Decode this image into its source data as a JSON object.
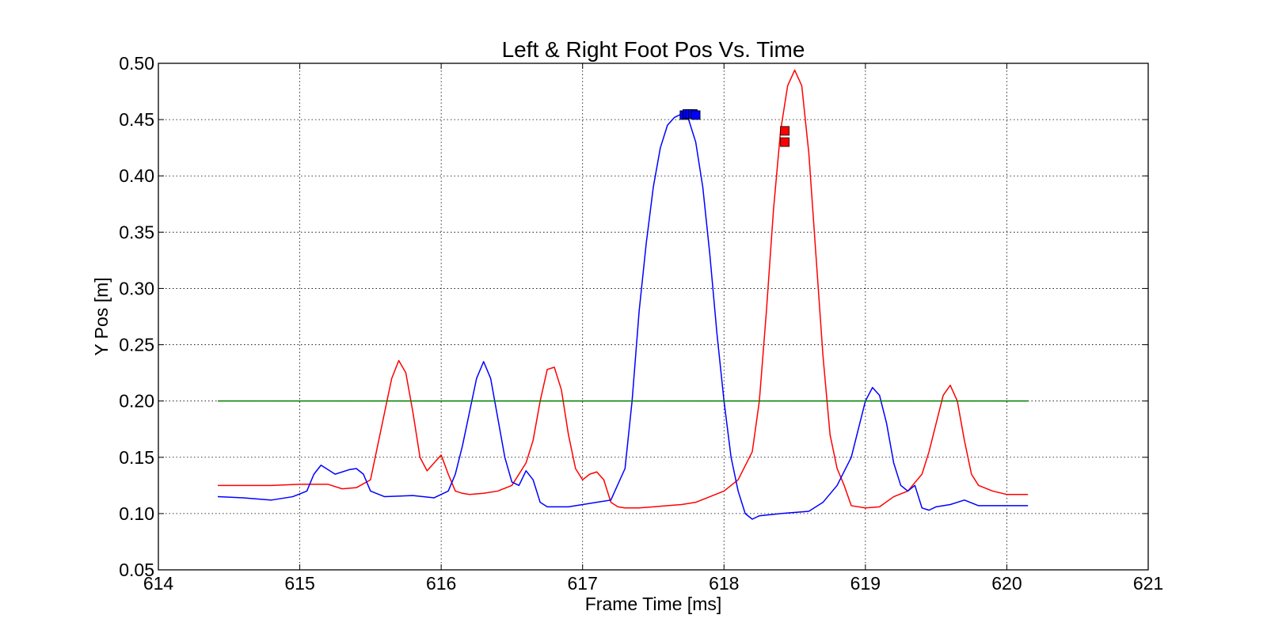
{
  "chart_data": {
    "type": "line",
    "title": "Left & Right Foot Pos Vs. Time",
    "xlabel": "Frame Time [ms]",
    "ylabel": "Y Pos [m]",
    "xlim": [
      614,
      621
    ],
    "ylim": [
      0.05,
      0.5
    ],
    "xticks": [
      "614",
      "615",
      "616",
      "617",
      "618",
      "619",
      "620",
      "621"
    ],
    "yticks": [
      "0.05",
      "0.10",
      "0.15",
      "0.20",
      "0.25",
      "0.30",
      "0.35",
      "0.40",
      "0.45",
      "0.50"
    ],
    "grid": true,
    "grid_style": "dotted",
    "series": [
      {
        "color": "#ff0000",
        "x": [
          614.42,
          614.6,
          614.8,
          615.0,
          615.1,
          615.2,
          615.3,
          615.4,
          615.5,
          615.55,
          615.6,
          615.65,
          615.7,
          615.75,
          615.8,
          615.85,
          615.9,
          615.95,
          616.0,
          616.05,
          616.1,
          616.15,
          616.2,
          616.3,
          616.4,
          616.5,
          616.6,
          616.65,
          616.7,
          616.75,
          616.8,
          616.85,
          616.9,
          616.95,
          617.0,
          617.05,
          617.1,
          617.15,
          617.2,
          617.25,
          617.3,
          617.4,
          617.5,
          617.6,
          617.7,
          617.8,
          617.9,
          618.0,
          618.1,
          618.2,
          618.25,
          618.3,
          618.35,
          618.4,
          618.45,
          618.5,
          618.55,
          618.6,
          618.65,
          618.7,
          618.75,
          618.8,
          618.85,
          618.9,
          619.0,
          619.1,
          619.2,
          619.3,
          619.4,
          619.45,
          619.5,
          619.55,
          619.6,
          619.65,
          619.7,
          619.75,
          619.8,
          619.9,
          620.0,
          620.1,
          620.15
        ],
        "y": [
          0.125,
          0.125,
          0.125,
          0.126,
          0.126,
          0.126,
          0.122,
          0.123,
          0.13,
          0.16,
          0.19,
          0.22,
          0.236,
          0.225,
          0.19,
          0.15,
          0.138,
          0.145,
          0.152,
          0.135,
          0.12,
          0.118,
          0.117,
          0.118,
          0.12,
          0.125,
          0.145,
          0.165,
          0.2,
          0.228,
          0.23,
          0.21,
          0.17,
          0.14,
          0.13,
          0.135,
          0.137,
          0.13,
          0.11,
          0.106,
          0.105,
          0.105,
          0.106,
          0.107,
          0.108,
          0.11,
          0.115,
          0.12,
          0.13,
          0.155,
          0.2,
          0.28,
          0.37,
          0.44,
          0.48,
          0.494,
          0.48,
          0.42,
          0.33,
          0.24,
          0.17,
          0.14,
          0.125,
          0.107,
          0.105,
          0.106,
          0.115,
          0.12,
          0.135,
          0.155,
          0.18,
          0.205,
          0.214,
          0.2,
          0.165,
          0.135,
          0.125,
          0.12,
          0.117,
          0.117,
          0.117
        ]
      },
      {
        "color": "#0000ff",
        "x": [
          614.42,
          614.6,
          614.8,
          614.95,
          615.05,
          615.1,
          615.15,
          615.25,
          615.35,
          615.4,
          615.45,
          615.5,
          615.6,
          615.8,
          615.95,
          616.05,
          616.1,
          616.15,
          616.2,
          616.25,
          616.3,
          616.35,
          616.4,
          616.45,
          616.5,
          616.55,
          616.6,
          616.65,
          616.7,
          616.75,
          616.9,
          617.1,
          617.2,
          617.3,
          617.35,
          617.4,
          617.45,
          617.5,
          617.55,
          617.6,
          617.65,
          617.7,
          617.75,
          617.8,
          617.85,
          617.9,
          617.95,
          618.0,
          618.05,
          618.1,
          618.15,
          618.2,
          618.25,
          618.4,
          618.6,
          618.7,
          618.8,
          618.9,
          618.95,
          619.0,
          619.05,
          619.1,
          619.15,
          619.2,
          619.25,
          619.3,
          619.35,
          619.4,
          619.45,
          619.5,
          619.6,
          619.7,
          619.8,
          619.9,
          620.0,
          620.1,
          620.15
        ],
        "y": [
          0.115,
          0.114,
          0.112,
          0.115,
          0.12,
          0.135,
          0.143,
          0.135,
          0.139,
          0.14,
          0.135,
          0.12,
          0.115,
          0.116,
          0.114,
          0.12,
          0.135,
          0.16,
          0.19,
          0.22,
          0.235,
          0.22,
          0.185,
          0.15,
          0.128,
          0.125,
          0.138,
          0.13,
          0.11,
          0.106,
          0.106,
          0.11,
          0.112,
          0.14,
          0.2,
          0.28,
          0.34,
          0.39,
          0.425,
          0.445,
          0.452,
          0.455,
          0.45,
          0.43,
          0.39,
          0.33,
          0.26,
          0.2,
          0.15,
          0.12,
          0.1,
          0.095,
          0.098,
          0.1,
          0.102,
          0.11,
          0.125,
          0.15,
          0.175,
          0.2,
          0.212,
          0.205,
          0.18,
          0.145,
          0.125,
          0.12,
          0.125,
          0.105,
          0.103,
          0.106,
          0.108,
          0.112,
          0.107,
          0.107,
          0.107,
          0.107,
          0.107
        ]
      },
      {
        "color": "#007f00",
        "x": [
          614.42,
          620.15
        ],
        "y": [
          0.2,
          0.2
        ]
      }
    ],
    "markers": [
      {
        "color": "#0000ff",
        "shape": "square",
        "x": [
          617.72,
          617.74,
          617.76,
          617.78,
          617.8
        ],
        "y": [
          0.454,
          0.455,
          0.455,
          0.455,
          0.454
        ]
      },
      {
        "color": "#ff0000",
        "shape": "square",
        "x": [
          618.43,
          618.43
        ],
        "y": [
          0.44,
          0.43
        ]
      }
    ]
  }
}
